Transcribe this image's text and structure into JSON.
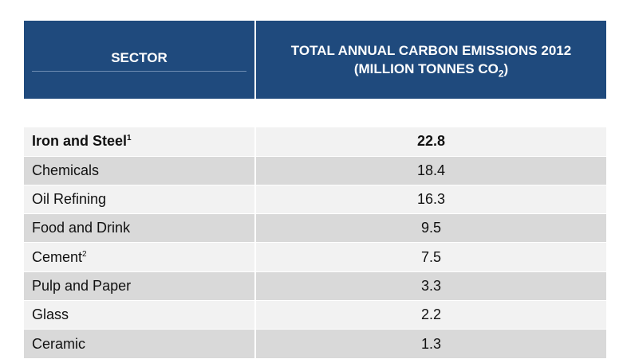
{
  "table": {
    "header": {
      "sector": "SECTOR",
      "total_line1": "TOTAL ANNUAL CARBON EMISSIONS 2012",
      "total_line2_prefix": "(MILLION TONNES CO",
      "total_line2_sub": "2",
      "total_line2_suffix": ")"
    },
    "rows": [
      {
        "sector": "Iron and Steel",
        "footnote": "1",
        "value": "22.8"
      },
      {
        "sector": "Chemicals",
        "footnote": "",
        "value": "18.4"
      },
      {
        "sector": "Oil Refining",
        "footnote": "",
        "value": "16.3"
      },
      {
        "sector": "Food and Drink",
        "footnote": "",
        "value": "9.5"
      },
      {
        "sector": "Cement",
        "footnote": "2",
        "value": "7.5"
      },
      {
        "sector": "Pulp and Paper",
        "footnote": "",
        "value": "3.3"
      },
      {
        "sector": "Glass",
        "footnote": "",
        "value": "2.2"
      },
      {
        "sector": "Ceramic",
        "footnote": "",
        "value": "1.3"
      }
    ]
  },
  "colors": {
    "header_bg": "#1f4a7d",
    "row_light": "#f2f2f2",
    "row_dark": "#d9d9d9"
  }
}
